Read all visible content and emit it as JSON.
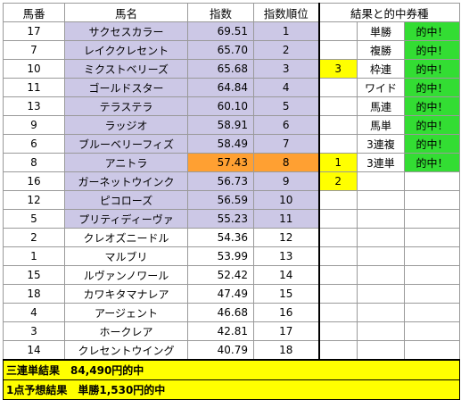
{
  "headers": {
    "number": "馬番",
    "name": "馬名",
    "index": "指数",
    "rank": "指数順位",
    "results": "結果と的中券種"
  },
  "rows": [
    {
      "number": "17",
      "name": "サクセスカラー",
      "index": "69.51",
      "rank": "1",
      "mark": "",
      "bet": "単勝",
      "hit": "的中！"
    },
    {
      "number": "7",
      "name": "レイククレセント",
      "index": "65.70",
      "rank": "2",
      "mark": "",
      "bet": "複勝",
      "hit": "的中！"
    },
    {
      "number": "10",
      "name": "ミクストベリーズ",
      "index": "65.68",
      "rank": "3",
      "mark": "3",
      "bet": "枠連",
      "hit": "的中！"
    },
    {
      "number": "11",
      "name": "ゴールドスター",
      "index": "64.84",
      "rank": "4",
      "mark": "",
      "bet": "ワイド",
      "hit": "的中！"
    },
    {
      "number": "13",
      "name": "テラステラ",
      "index": "60.10",
      "rank": "5",
      "mark": "",
      "bet": "馬連",
      "hit": "的中！"
    },
    {
      "number": "9",
      "name": "ラッジオ",
      "index": "58.91",
      "rank": "6",
      "mark": "",
      "bet": "馬単",
      "hit": "的中！"
    },
    {
      "number": "6",
      "name": "ブルーベリーフィズ",
      "index": "58.49",
      "rank": "7",
      "mark": "",
      "bet": "3連複",
      "hit": "的中！"
    },
    {
      "number": "8",
      "name": "アニトラ",
      "index": "57.43",
      "rank": "8",
      "mark": "1",
      "bet": "3連単",
      "hit": "的中！"
    },
    {
      "number": "16",
      "name": "ガーネットウインク",
      "index": "56.73",
      "rank": "9",
      "mark": "2",
      "bet": "",
      "hit": ""
    },
    {
      "number": "12",
      "name": "ピコローズ",
      "index": "56.59",
      "rank": "10",
      "mark": "",
      "bet": "",
      "hit": ""
    },
    {
      "number": "5",
      "name": "プリティディーヴァ",
      "index": "55.23",
      "rank": "11",
      "mark": "",
      "bet": "",
      "hit": ""
    },
    {
      "number": "2",
      "name": "クレオズニードル",
      "index": "54.36",
      "rank": "12",
      "mark": "",
      "bet": "",
      "hit": ""
    },
    {
      "number": "1",
      "name": "マルブリ",
      "index": "53.99",
      "rank": "13",
      "mark": "",
      "bet": "",
      "hit": ""
    },
    {
      "number": "15",
      "name": "ルヴァンノワール",
      "index": "52.42",
      "rank": "14",
      "mark": "",
      "bet": "",
      "hit": ""
    },
    {
      "number": "18",
      "name": "カワキタマナレア",
      "index": "47.49",
      "rank": "15",
      "mark": "",
      "bet": "",
      "hit": ""
    },
    {
      "number": "4",
      "name": "アージェント",
      "index": "46.68",
      "rank": "16",
      "mark": "",
      "bet": "",
      "hit": ""
    },
    {
      "number": "3",
      "name": "ホークレア",
      "index": "42.81",
      "rank": "17",
      "mark": "",
      "bet": "",
      "hit": ""
    },
    {
      "number": "14",
      "name": "クレセントウイング",
      "index": "40.79",
      "rank": "18",
      "mark": "",
      "bet": "",
      "hit": ""
    }
  ],
  "footer": {
    "line1": "三連単結果　84,490円的中",
    "line2": "1点予想結果　単勝1,530円的中"
  },
  "colors": {
    "highlight_row": "#ccc8e6",
    "featured_index": "#ffa032",
    "mark": "#ffff00",
    "hit": "#33dd33",
    "footer": "#ffff00"
  }
}
